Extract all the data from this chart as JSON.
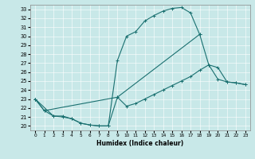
{
  "xlabel": "Humidex (Indice chaleur)",
  "bg_color": "#c8e8e8",
  "line_color": "#1a7070",
  "xlim": [
    -0.5,
    23.5
  ],
  "ylim": [
    19.5,
    33.5
  ],
  "xticks": [
    0,
    1,
    2,
    3,
    4,
    5,
    6,
    7,
    8,
    9,
    10,
    11,
    12,
    13,
    14,
    15,
    16,
    17,
    18,
    19,
    20,
    21,
    22,
    23
  ],
  "yticks": [
    20,
    21,
    22,
    23,
    24,
    25,
    26,
    27,
    28,
    29,
    30,
    31,
    32,
    33
  ],
  "curve1_x": [
    0,
    2,
    3,
    4,
    5,
    6,
    7,
    8,
    9,
    10,
    11,
    12,
    13,
    14,
    15,
    16,
    17,
    18
  ],
  "curve1_y": [
    23,
    21.1,
    21.1,
    20.8,
    20.3,
    20.1,
    20.0,
    20.0,
    27.3,
    30.0,
    30.5,
    31.7,
    32.3,
    32.8,
    33.1,
    33.2,
    32.6,
    30.2
  ],
  "curve2_x": [
    0,
    1,
    2,
    3,
    4,
    5,
    6,
    7,
    8,
    9,
    18,
    19,
    20,
    21,
    22,
    23
  ],
  "curve2_y": [
    23,
    21.7,
    21.1,
    21.0,
    20.8,
    20.3,
    20.1,
    20.0,
    20.0,
    23.2,
    30.2,
    26.8,
    25.2,
    24.9,
    24.8,
    24.6
  ],
  "curve3_x": [
    0,
    1,
    9,
    10,
    11,
    12,
    13,
    14,
    15,
    16,
    17,
    18,
    19,
    20,
    21,
    22,
    23
  ],
  "curve3_y": [
    23,
    21.7,
    23.2,
    22.2,
    22.5,
    23.0,
    23.5,
    24.0,
    24.5,
    25.0,
    25.5,
    26.2,
    26.8,
    26.5,
    24.9,
    24.8,
    24.6
  ]
}
